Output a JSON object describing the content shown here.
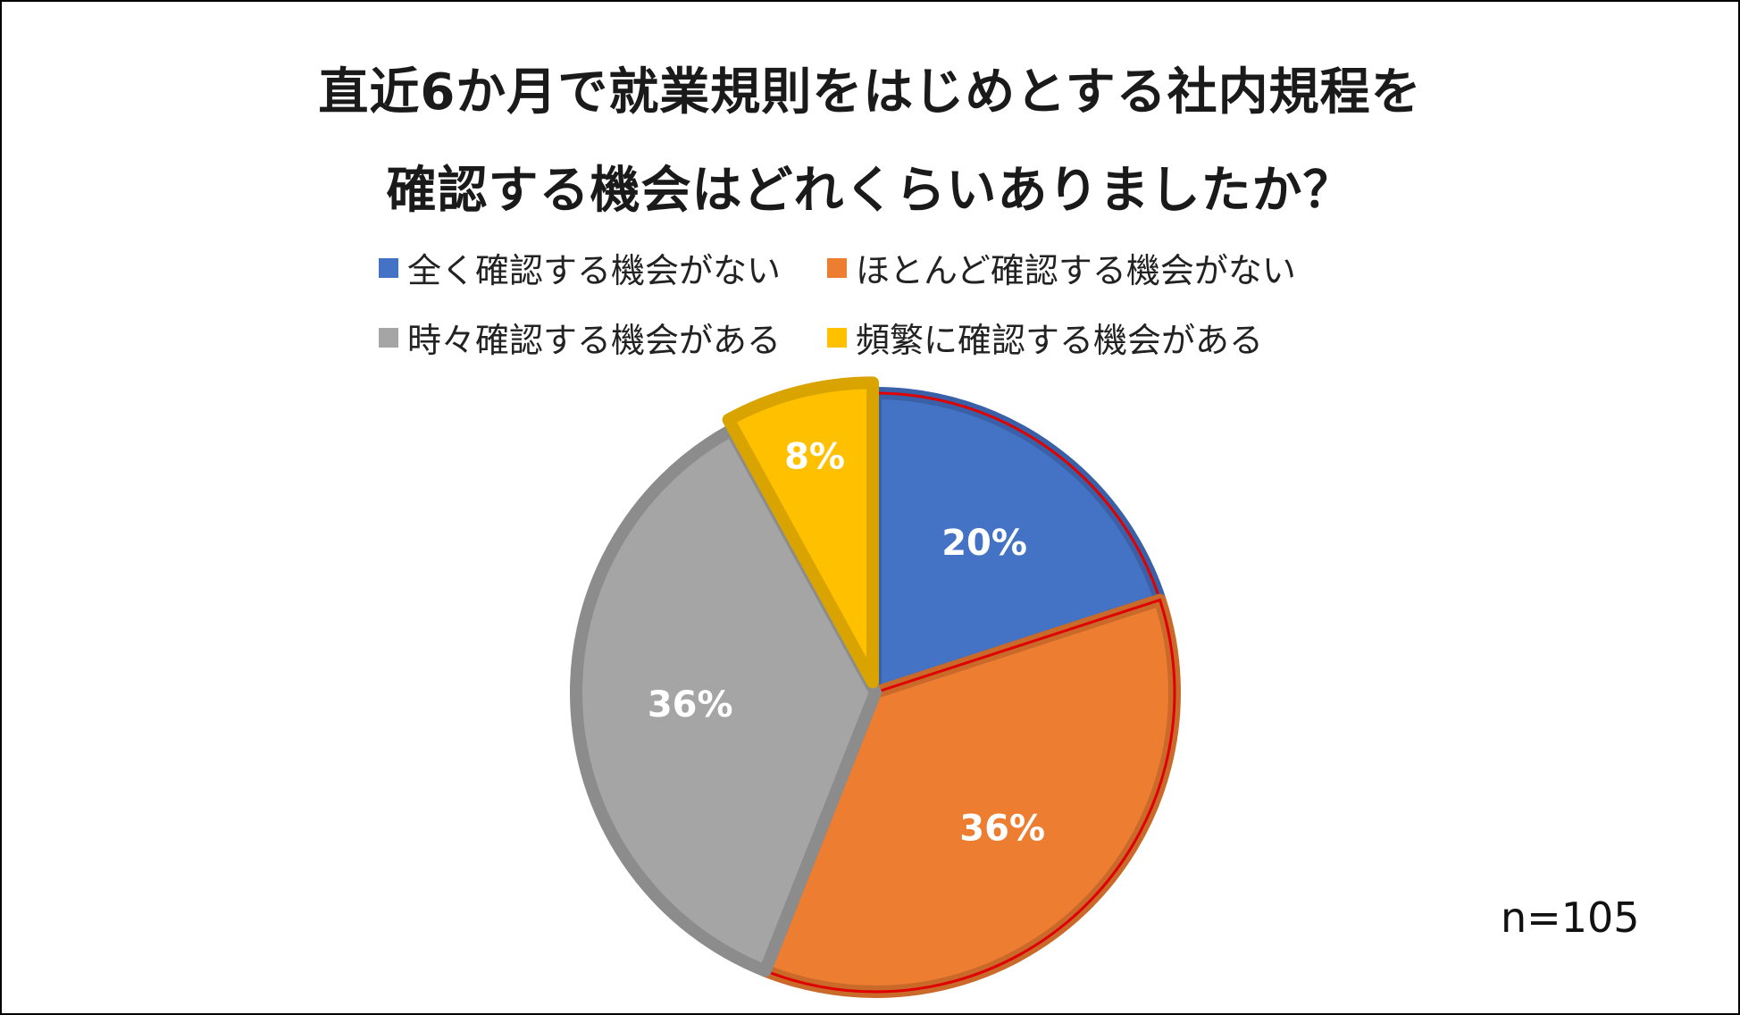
{
  "chart_data": {
    "type": "pie",
    "title_line1": "直近6か月で就業規則をはじめとする社内規程を",
    "title_line2": "確認する機会はどれくらいありましたか？",
    "slices": [
      {
        "label": "全く確認する機会がない",
        "value": 20,
        "display": "20%",
        "color": "#4472C4"
      },
      {
        "label": "ほとんど確認する機会がない",
        "value": 36,
        "display": "36%",
        "color": "#ED7D31"
      },
      {
        "label": "時々確認する機会がある",
        "value": 36,
        "display": "36%",
        "color": "#A5A5A5"
      },
      {
        "label": "頻繁に確認する機会がある",
        "value": 8,
        "display": "8%",
        "color": "#FFC000"
      }
    ],
    "legend_position": "top",
    "sample_size": "n=105"
  }
}
